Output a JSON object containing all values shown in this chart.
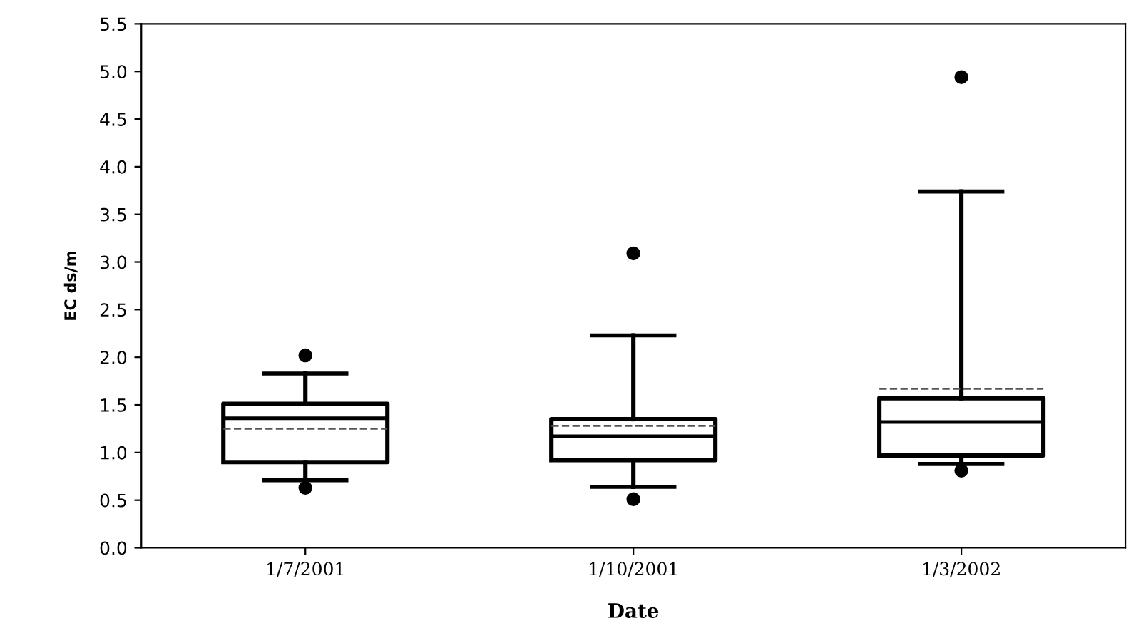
{
  "chart_data": {
    "type": "box",
    "xlabel": "Date",
    "ylabel": "EC ds/m",
    "categories": [
      "1/7/2001",
      "1/10/2001",
      "1/3/2002"
    ],
    "boxes": [
      {
        "low": 0.71,
        "q1": 0.9,
        "median": 1.36,
        "q3": 1.51,
        "high": 1.83,
        "mean": 1.25,
        "outliers": [
          2.02,
          0.63
        ]
      },
      {
        "low": 0.64,
        "q1": 0.92,
        "median": 1.17,
        "q3": 1.35,
        "high": 2.23,
        "mean": 1.28,
        "outliers": [
          3.09,
          0.51
        ]
      },
      {
        "low": 0.88,
        "q1": 0.97,
        "median": 1.32,
        "q3": 1.57,
        "high": 3.74,
        "mean": 1.67,
        "outliers": [
          4.94,
          0.81
        ]
      }
    ],
    "ylim": [
      0,
      5.5
    ],
    "yticks": [
      {
        "value": 0,
        "label": "0.0"
      },
      {
        "value": 0.5,
        "label": "0.5"
      },
      {
        "value": 1,
        "label": "1.0"
      },
      {
        "value": 1.5,
        "label": "1.5"
      },
      {
        "value": 2,
        "label": "2.0"
      },
      {
        "value": 2.5,
        "label": "2.5"
      },
      {
        "value": 3,
        "label": "3.0"
      },
      {
        "value": 3.5,
        "label": "3.5"
      },
      {
        "value": 4,
        "label": "4.0"
      },
      {
        "value": 4.5,
        "label": "4.5"
      },
      {
        "value": 5,
        "label": "5.0"
      },
      {
        "value": 5.5,
        "label": "5.5"
      }
    ],
    "grid": false
  }
}
